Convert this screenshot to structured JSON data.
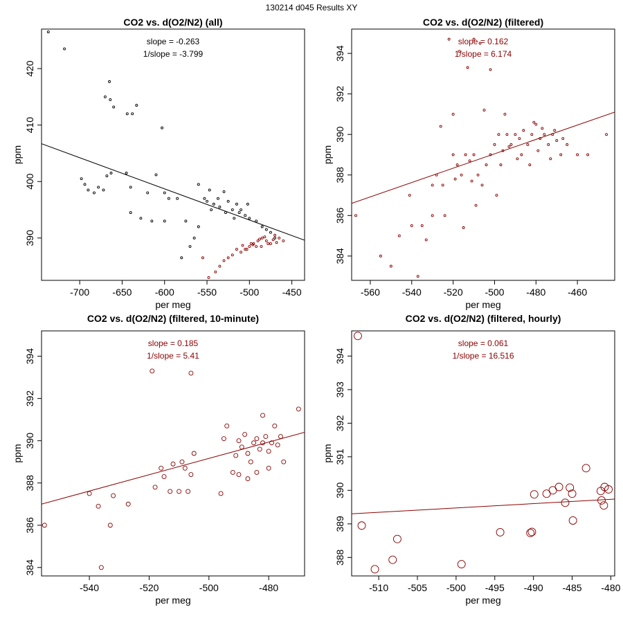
{
  "page_title": "130214   d045   Results XY",
  "colors": {
    "red": "#8b0000",
    "black": "#000000"
  },
  "chart_data": [
    {
      "type": "scatter",
      "title": "CO2 vs. d(O2/N2) (all)",
      "xlabel": "per meg",
      "ylabel": "ppm",
      "xlim": [
        -745,
        -435
      ],
      "ylim": [
        382.5,
        427
      ],
      "xticks": [
        -700,
        -650,
        -600,
        -550,
        -500,
        -450
      ],
      "yticks": [
        390,
        400,
        410,
        420
      ],
      "annotations": [
        "slope = -0.263",
        "1/slope = -3.799"
      ],
      "annotation_color": "#000000",
      "fit_line": {
        "x": [
          -745,
          -435
        ],
        "y": [
          406.7,
          389.6
        ],
        "color": "#000000"
      },
      "series": [
        {
          "name": "all",
          "color": "#000000",
          "points": [
            [
              -737,
              426.5
            ],
            [
              -718,
              423.5
            ],
            [
              -665,
              417.7
            ],
            [
              -670,
              415
            ],
            [
              -664,
              414.5
            ],
            [
              -660,
              413.2
            ],
            [
              -633,
              413.5
            ],
            [
              -644,
              412
            ],
            [
              -638,
              412
            ],
            [
              -603,
              409.5
            ],
            [
              -698,
              400.5
            ],
            [
              -694,
              399.5
            ],
            [
              -690,
              398.5
            ],
            [
              -683,
              398
            ],
            [
              -678,
              399
            ],
            [
              -672,
              398.5
            ],
            [
              -668,
              401
            ],
            [
              -663,
              401.5
            ],
            [
              -645,
              401.5
            ],
            [
              -640,
              399
            ],
            [
              -620,
              398
            ],
            [
              -610,
              401.2
            ],
            [
              -600,
              398
            ],
            [
              -595,
              397
            ],
            [
              -585,
              397
            ],
            [
              -640,
              394.5
            ],
            [
              -628,
              393.5
            ],
            [
              -615,
              393
            ],
            [
              -600,
              393
            ],
            [
              -575,
              393
            ],
            [
              -560,
              399.5
            ],
            [
              -553,
              397
            ],
            [
              -547,
              398.5
            ],
            [
              -542,
              396
            ],
            [
              -537,
              397
            ],
            [
              -530,
              398.2
            ],
            [
              -525,
              396.5
            ],
            [
              -520,
              395
            ],
            [
              -515,
              396
            ],
            [
              -510,
              395
            ],
            [
              -505,
              394
            ],
            [
              -500,
              393.5
            ],
            [
              -492,
              393
            ],
            [
              -485,
              392
            ],
            [
              -480,
              391.5
            ],
            [
              -475,
              391
            ],
            [
              -470,
              390
            ],
            [
              -545,
              395
            ],
            [
              -535,
              395.5
            ],
            [
              -528,
              394.5
            ],
            [
              -518,
              393.5
            ],
            [
              -512,
              394.5
            ],
            [
              -502,
              396
            ],
            [
              -550,
              396.5
            ],
            [
              -560,
              392
            ],
            [
              -565,
              390
            ],
            [
              -570,
              388.5
            ],
            [
              -580,
              386.5
            ]
          ]
        },
        {
          "name": "filtered",
          "color": "#8b0000",
          "points": [
            [
              -548,
              383
            ],
            [
              -540,
              384
            ],
            [
              -535,
              385
            ],
            [
              -530,
              386
            ],
            [
              -555,
              386.5
            ],
            [
              -520,
              387
            ],
            [
              -525,
              386.5
            ],
            [
              -510,
              387.5
            ],
            [
              -505,
              388
            ],
            [
              -500,
              388.5
            ],
            [
              -495,
              389
            ],
            [
              -490,
              389.5
            ],
            [
              -485,
              390
            ],
            [
              -480,
              389.5
            ],
            [
              -475,
              389
            ],
            [
              -470,
              390.5
            ],
            [
              -465,
              390
            ],
            [
              -460,
              389.5
            ],
            [
              -515,
              388
            ],
            [
              -508,
              388.7
            ],
            [
              -498,
              389
            ],
            [
              -492,
              388.5
            ],
            [
              -488,
              389.8
            ],
            [
              -482,
              390.2
            ],
            [
              -478,
              389
            ],
            [
              -472,
              389.7
            ],
            [
              -468,
              389.2
            ],
            [
              -503,
              388
            ],
            [
              -496,
              388.8
            ],
            [
              -486,
              388.5
            ]
          ]
        }
      ]
    },
    {
      "type": "scatter",
      "title": "CO2 vs. d(O2/N2) (filtered)",
      "xlabel": "per meg",
      "ylabel": "ppm",
      "xlim": [
        -569,
        -442
      ],
      "ylim": [
        382.8,
        395.2
      ],
      "xticks": [
        -560,
        -540,
        -520,
        -500,
        -480,
        -460
      ],
      "yticks": [
        384,
        386,
        388,
        390,
        392,
        394
      ],
      "annotations": [
        "slope = 0.162",
        "1/slope = 6.174"
      ],
      "annotation_color": "#8b0000",
      "fit_line": {
        "x": [
          -569,
          -442
        ],
        "y": [
          386.6,
          391.1
        ],
        "color": "#8b0000"
      },
      "series": [
        {
          "name": "filtered",
          "color": "#8b0000",
          "points": [
            [
              -567,
              386
            ],
            [
              -555,
              384
            ],
            [
              -550,
              383.5
            ],
            [
              -546,
              385
            ],
            [
              -541,
              387
            ],
            [
              -537,
              383
            ],
            [
              -535,
              385.5
            ],
            [
              -530,
              386
            ],
            [
              -528,
              388
            ],
            [
              -525,
              387.5
            ],
            [
              -520,
              389
            ],
            [
              -518,
              388.5
            ],
            [
              -516,
              388
            ],
            [
              -514,
              389
            ],
            [
              -512,
              388.7
            ],
            [
              -510,
              389
            ],
            [
              -508,
              388
            ],
            [
              -506,
              387.5
            ],
            [
              -504,
              388.5
            ],
            [
              -502,
              389
            ],
            [
              -500,
              389.5
            ],
            [
              -498,
              390
            ],
            [
              -496,
              389.2
            ],
            [
              -494,
              390
            ],
            [
              -492,
              389.5
            ],
            [
              -490,
              390
            ],
            [
              -488,
              389.8
            ],
            [
              -486,
              390.2
            ],
            [
              -484,
              389.5
            ],
            [
              -482,
              390
            ],
            [
              -480,
              390.5
            ],
            [
              -478,
              389.8
            ],
            [
              -476,
              390
            ],
            [
              -474,
              389.5
            ],
            [
              -472,
              390
            ],
            [
              -470,
              389.7
            ],
            [
              -468,
              389
            ],
            [
              -465,
              389.5
            ],
            [
              -460,
              389
            ],
            [
              -455,
              389
            ],
            [
              -446,
              390
            ],
            [
              -510,
              394.7
            ],
            [
              -507,
              394.5
            ],
            [
              -513,
              393.3
            ],
            [
              -522,
              394.7
            ],
            [
              -502,
              393.2
            ],
            [
              -517,
              394.1
            ],
            [
              -520,
              391
            ],
            [
              -505,
              391.2
            ],
            [
              -495,
              391
            ],
            [
              -530,
              387.5
            ],
            [
              -526,
              390.4
            ],
            [
              -540,
              385.5
            ],
            [
              -533,
              384.8
            ],
            [
              -524,
              386
            ],
            [
              -519,
              387.8
            ],
            [
              -497,
              388.5
            ],
            [
              -489,
              388.8
            ],
            [
              -483,
              388.5
            ],
            [
              -479,
              389.2
            ],
            [
              -473,
              388.8
            ],
            [
              -467,
              389.8
            ],
            [
              -511,
              387.7
            ],
            [
              -509,
              386.5
            ],
            [
              -515,
              385.4
            ],
            [
              -499,
              387
            ],
            [
              -493,
              389.4
            ],
            [
              -487,
              389
            ],
            [
              -481,
              390.6
            ],
            [
              -477,
              390.3
            ],
            [
              -471,
              390.2
            ]
          ]
        }
      ]
    },
    {
      "type": "scatter",
      "title": "CO2 vs. d(O2/N2) (filtered, 10-minute)",
      "xlabel": "per meg",
      "ylabel": "ppm",
      "xlim": [
        -556,
        -468
      ],
      "ylim": [
        383.6,
        395.2
      ],
      "xticks": [
        -540,
        -520,
        -500,
        -480
      ],
      "yticks": [
        384,
        386,
        388,
        390,
        392,
        394
      ],
      "annotations": [
        "slope = 0.185",
        "1/slope = 5.41"
      ],
      "annotation_color": "#8b0000",
      "fit_line": {
        "x": [
          -556,
          -468
        ],
        "y": [
          387.0,
          390.4
        ],
        "color": "#8b0000"
      },
      "series": [
        {
          "name": "10-minute",
          "color": "#8b0000",
          "points": [
            [
              -555,
              386
            ],
            [
              -540,
              387.5
            ],
            [
              -537,
              386.9
            ],
            [
              -533,
              386
            ],
            [
              -532,
              387.4
            ],
            [
              -536,
              384
            ],
            [
              -527,
              387
            ],
            [
              -518,
              387.8
            ],
            [
              -516,
              388.7
            ],
            [
              -515,
              388.3
            ],
            [
              -513,
              387.6
            ],
            [
              -512,
              388.9
            ],
            [
              -510,
              387.6
            ],
            [
              -509,
              389
            ],
            [
              -508,
              388.7
            ],
            [
              -507,
              387.6
            ],
            [
              -506,
              388.4
            ],
            [
              -505,
              389.4
            ],
            [
              -519,
              393.3
            ],
            [
              -506,
              393.2
            ],
            [
              -496,
              387.5
            ],
            [
              -495,
              390.1
            ],
            [
              -494,
              390.7
            ],
            [
              -492,
              388.5
            ],
            [
              -491,
              389.3
            ],
            [
              -490,
              390
            ],
            [
              -489,
              389.7
            ],
            [
              -488,
              390.3
            ],
            [
              -487,
              389.4
            ],
            [
              -486,
              389
            ],
            [
              -485,
              389.9
            ],
            [
              -484,
              390.1
            ],
            [
              -483,
              389.6
            ],
            [
              -482,
              389.9
            ],
            [
              -481,
              390.2
            ],
            [
              -480,
              389.5
            ],
            [
              -479,
              389.9
            ],
            [
              -478,
              390.7
            ],
            [
              -477,
              389.8
            ],
            [
              -476,
              390.2
            ],
            [
              -475,
              389
            ],
            [
              -482,
              391.2
            ],
            [
              -470,
              391.5
            ],
            [
              -484,
              388.5
            ],
            [
              -487,
              388.2
            ],
            [
              -480,
              388.7
            ],
            [
              -490,
              388.4
            ]
          ]
        }
      ]
    },
    {
      "type": "scatter",
      "title": "CO2 vs. d(O2/N2) (filtered, hourly)",
      "xlabel": "per meg",
      "ylabel": "ppm",
      "xlim": [
        -513.5,
        -479.5
      ],
      "ylim": [
        387.45,
        394.75
      ],
      "xticks": [
        -510,
        -505,
        -500,
        -495,
        -490,
        -485,
        -480
      ],
      "yticks": [
        388,
        389,
        390,
        391,
        392,
        393,
        394
      ],
      "annotations": [
        "slope = 0.061",
        "1/slope = 16.516"
      ],
      "annotation_color": "#8b0000",
      "fit_line": {
        "x": [
          -513.5,
          -479.5
        ],
        "y": [
          389.3,
          389.74
        ],
        "color": "#8b0000"
      },
      "series": [
        {
          "name": "hourly",
          "color": "#8b0000",
          "points": [
            [
              -512.7,
              394.6
            ],
            [
              -512.2,
              388.95
            ],
            [
              -510.5,
              387.65
            ],
            [
              -508.2,
              387.93
            ],
            [
              -507.6,
              388.55
            ],
            [
              -499.3,
              387.8
            ],
            [
              -494.3,
              388.75
            ],
            [
              -490.4,
              388.73
            ],
            [
              -490.2,
              388.76
            ],
            [
              -489.9,
              389.88
            ],
            [
              -488.3,
              389.9
            ],
            [
              -487.5,
              390
            ],
            [
              -486.7,
              390.1
            ],
            [
              -485.9,
              389.63
            ],
            [
              -485.3,
              390.08
            ],
            [
              -485,
              389.9
            ],
            [
              -484.9,
              389.1
            ],
            [
              -483.2,
              390.66
            ],
            [
              -481.3,
              389.98
            ],
            [
              -481.2,
              389.7
            ],
            [
              -480.9,
              389.55
            ],
            [
              -480.8,
              390.1
            ],
            [
              -480.3,
              390.03
            ]
          ]
        }
      ]
    }
  ]
}
